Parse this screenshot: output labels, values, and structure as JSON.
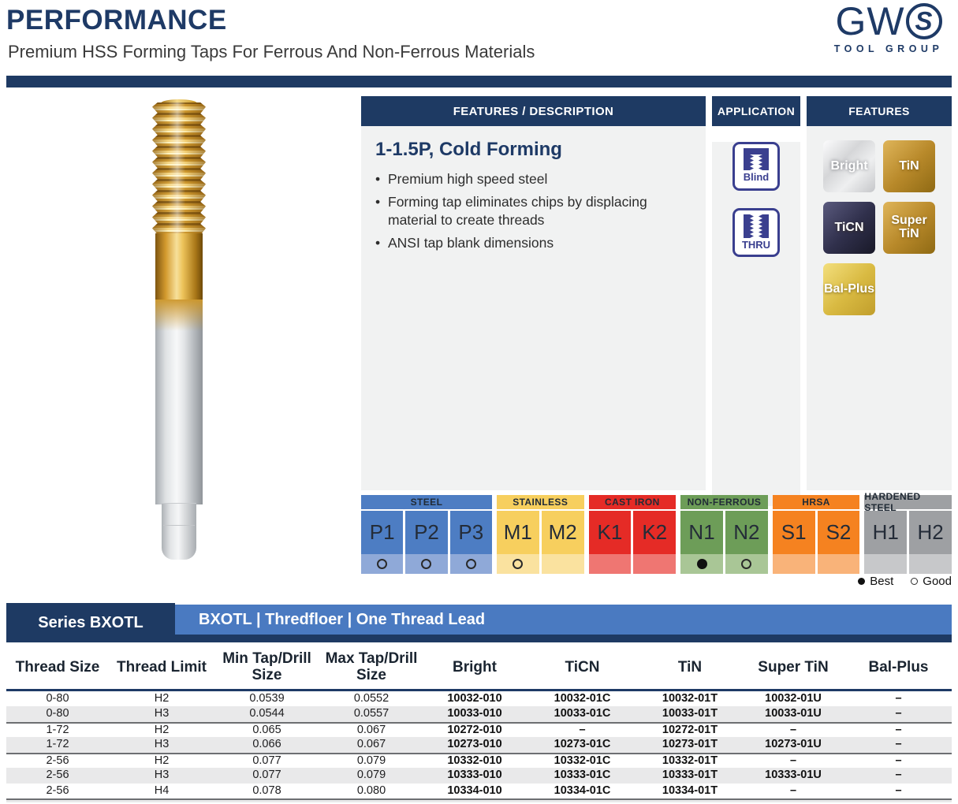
{
  "header": {
    "title": "PERFORMANCE",
    "subtitle": "Premium HSS Forming Taps For Ferrous And Non-Ferrous Materials",
    "logo": {
      "gw": "GW",
      "s": "S",
      "subtext": "TOOL GROUP"
    }
  },
  "colors": {
    "navy": "#1e3a63",
    "title_navy": "#1e3a66",
    "series_blue": "#4a7ac1",
    "panel_bg": "#f1f2f2",
    "icon_navy": "#3a3f8f",
    "row_shade": "#e9e9ea",
    "separator_gray": "#6d6f72"
  },
  "description_panel": {
    "header": "FEATURES / DESCRIPTION",
    "heading": "1-1.5P, Cold Forming",
    "bullets": [
      "Premium high speed steel",
      "Forming tap eliminates chips by displacing material to create threads",
      "ANSI tap blank dimensions"
    ]
  },
  "application_panel": {
    "header": "APPLICATION",
    "icons": [
      {
        "name": "blind-hole",
        "label": "Blind"
      },
      {
        "name": "thru-hole",
        "label": "THRU"
      }
    ]
  },
  "features_panel": {
    "header": "FEATURES",
    "badges": [
      {
        "label": "Bright",
        "gradient": [
          "#fcfcfd",
          "#d5d6d8",
          "#eeeff0",
          "#c5c6c9"
        ],
        "light_text": true
      },
      {
        "label": "TiN",
        "gradient": [
          "#dfb55a",
          "#b8892a",
          "#8f6a14"
        ],
        "light_text": false
      },
      {
        "label": "TiCN",
        "gradient": [
          "#5a5a7e",
          "#30304c",
          "#191928"
        ],
        "light_text": false
      },
      {
        "label": "Super TiN",
        "gradient": [
          "#dfb55a",
          "#b8892a",
          "#8f6a14"
        ],
        "light_text": false
      },
      {
        "label": "Bal-Plus",
        "gradient": [
          "#f3df7d",
          "#d9ba42",
          "#c19e2c"
        ],
        "light_text": false
      }
    ]
  },
  "material_chart": {
    "groups": [
      {
        "name": "STEEL",
        "color": "#4d7dc3",
        "light": "#8fa9d8",
        "cells": [
          {
            "code": "P1",
            "rating": "good"
          },
          {
            "code": "P2",
            "rating": "good"
          },
          {
            "code": "P3",
            "rating": "good"
          }
        ]
      },
      {
        "name": "STAINLESS",
        "color": "#f7cf5e",
        "light": "#fae29f",
        "cells": [
          {
            "code": "M1",
            "rating": "good"
          },
          {
            "code": "M2",
            "rating": "none"
          }
        ]
      },
      {
        "name": "CAST IRON",
        "color": "#e52b26",
        "light": "#ef7672",
        "cells": [
          {
            "code": "K1",
            "rating": "none"
          },
          {
            "code": "K2",
            "rating": "none"
          }
        ]
      },
      {
        "name": "NON-FERROUS",
        "color": "#6d9d58",
        "light": "#a9c696",
        "cells": [
          {
            "code": "N1",
            "rating": "best"
          },
          {
            "code": "N2",
            "rating": "good"
          }
        ]
      },
      {
        "name": "HRSA",
        "color": "#f58220",
        "light": "#f9b379",
        "cells": [
          {
            "code": "S1",
            "rating": "none"
          },
          {
            "code": "S2",
            "rating": "none"
          }
        ]
      },
      {
        "name": "HARDENED STEEL",
        "color": "#9ea0a3",
        "light": "#c7c8ca",
        "cells": [
          {
            "code": "H1",
            "rating": "none"
          },
          {
            "code": "H2",
            "rating": "none"
          }
        ]
      }
    ],
    "legend": {
      "best": "Best",
      "good": "Good"
    }
  },
  "series_band": {
    "left": "Series BXOTL",
    "right": "BXOTL | Thredfloer | One Thread Lead"
  },
  "series_table": {
    "columns": [
      "Thread Size",
      "Thread Limit",
      "Min Tap/Drill Size",
      "Max Tap/Drill Size",
      "Bright",
      "TiCN",
      "TiN",
      "Super TiN",
      "Bal-Plus"
    ],
    "bold_columns_from": 4,
    "rows": [
      [
        "0-80",
        "H2",
        "0.0539",
        "0.0552",
        "10032-010",
        "10032-01C",
        "10032-01T",
        "10032-01U",
        "–"
      ],
      [
        "0-80",
        "H3",
        "0.0544",
        "0.0557",
        "10033-010",
        "10033-01C",
        "10033-01T",
        "10033-01U",
        "–"
      ],
      [
        "1-72",
        "H2",
        "0.065",
        "0.067",
        "10272-010",
        "–",
        "10272-01T",
        "–",
        "–"
      ],
      [
        "1-72",
        "H3",
        "0.066",
        "0.067",
        "10273-010",
        "10273-01C",
        "10273-01T",
        "10273-01U",
        "–"
      ],
      [
        "2-56",
        "H2",
        "0.077",
        "0.079",
        "10332-010",
        "10332-01C",
        "10332-01T",
        "–",
        "–"
      ],
      [
        "2-56",
        "H3",
        "0.077",
        "0.079",
        "10333-010",
        "10333-01C",
        "10333-01T",
        "10333-01U",
        "–"
      ],
      [
        "2-56",
        "H4",
        "0.078",
        "0.080",
        "10334-010",
        "10334-01C",
        "10334-01T",
        "–",
        "–"
      ]
    ],
    "separators_after": [
      1,
      3
    ],
    "shaded_rows": [
      1,
      3,
      5
    ]
  }
}
